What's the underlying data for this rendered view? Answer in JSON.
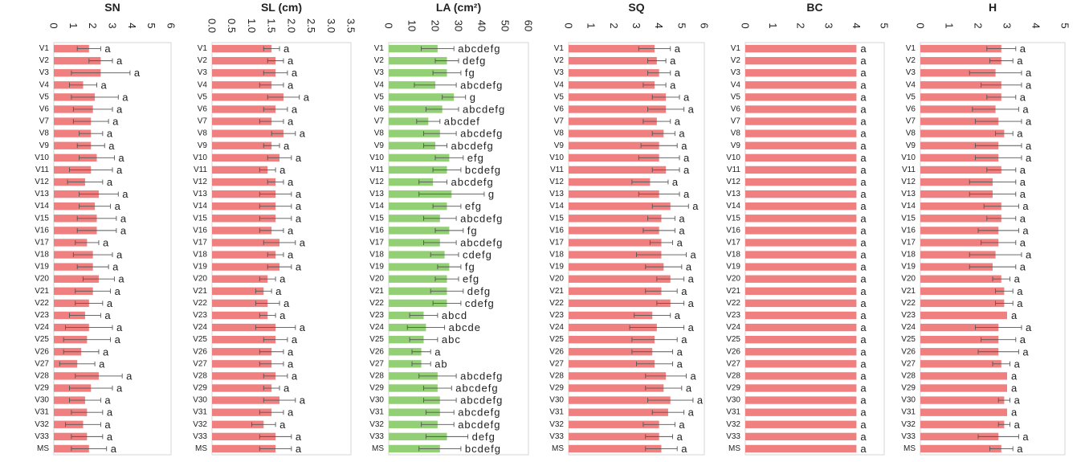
{
  "colors": {
    "red": "#f08080",
    "green": "#93cf74",
    "axis": "#d6d6d6",
    "err": "#555555"
  },
  "chart_data": [
    {
      "type": "bar",
      "title": "SN",
      "color": "red",
      "xlim": [
        0,
        6
      ],
      "ticks": [
        "0",
        "1",
        "2",
        "3",
        "4",
        "5",
        "6"
      ],
      "categories": [
        "V1",
        "V2",
        "V3",
        "V4",
        "V5",
        "V6",
        "V7",
        "V8",
        "V9",
        "V10",
        "V11",
        "V12",
        "V13",
        "V14",
        "V15",
        "V16",
        "V17",
        "V18",
        "V19",
        "V20",
        "V21",
        "V22",
        "V23",
        "V24",
        "V25",
        "V26",
        "V27",
        "V28",
        "V29",
        "V30",
        "V31",
        "V32",
        "V33",
        "MS"
      ],
      "values": [
        1.8,
        2.4,
        2.4,
        1.5,
        2.1,
        2.0,
        1.9,
        1.9,
        1.9,
        2.2,
        1.9,
        1.6,
        2.3,
        2.1,
        2.2,
        2.2,
        1.7,
        2.0,
        2.0,
        2.3,
        2.0,
        1.8,
        1.6,
        1.8,
        1.7,
        1.4,
        1.2,
        2.3,
        1.9,
        1.6,
        1.7,
        1.5,
        1.7,
        1.8
      ],
      "errors": [
        0.6,
        0.6,
        1.5,
        0.7,
        1.2,
        1.0,
        0.9,
        0.6,
        0.7,
        0.9,
        1.1,
        0.9,
        1.0,
        0.8,
        1.0,
        1.0,
        0.6,
        1.0,
        0.8,
        0.8,
        0.9,
        0.7,
        0.8,
        1.2,
        1.2,
        0.9,
        0.9,
        1.2,
        1.1,
        0.8,
        0.8,
        0.9,
        0.8,
        0.9
      ],
      "letters": [
        "a",
        "a",
        "a",
        "a",
        "a",
        "a",
        "a",
        "a",
        "a",
        "a",
        "a",
        "a",
        "a",
        "a",
        "a",
        "a",
        "a",
        "a",
        "a",
        "a",
        "a",
        "a",
        "a",
        "a",
        "a",
        "a",
        "a",
        "a",
        "a",
        "a",
        "a",
        "a",
        "a",
        "a"
      ]
    },
    {
      "type": "bar",
      "title": "SL (cm)",
      "color": "red",
      "xlim": [
        0,
        3.5
      ],
      "ticks": [
        "0.0",
        "0.5",
        "1.0",
        "1.5",
        "2.0",
        "2.5",
        "3.0",
        "3.5"
      ],
      "categories": [
        "V1",
        "V2",
        "V3",
        "V4",
        "V5",
        "V6",
        "V7",
        "V8",
        "V9",
        "V10",
        "V11",
        "V12",
        "V13",
        "V14",
        "V15",
        "V16",
        "V17",
        "V18",
        "V19",
        "V20",
        "V21",
        "V22",
        "V23",
        "V24",
        "V25",
        "V26",
        "V27",
        "V28",
        "V29",
        "V30",
        "V31",
        "V32",
        "V33",
        "MS"
      ],
      "values": [
        1.5,
        1.6,
        1.6,
        1.5,
        1.8,
        1.6,
        1.5,
        1.8,
        1.5,
        1.7,
        1.4,
        1.6,
        1.6,
        1.6,
        1.6,
        1.5,
        1.7,
        1.6,
        1.7,
        1.4,
        1.3,
        1.4,
        1.4,
        1.6,
        1.6,
        1.5,
        1.5,
        1.6,
        1.5,
        1.7,
        1.5,
        1.3,
        1.6,
        1.6
      ],
      "errors": [
        0.2,
        0.2,
        0.3,
        0.3,
        0.4,
        0.3,
        0.3,
        0.3,
        0.2,
        0.3,
        0.2,
        0.2,
        0.4,
        0.4,
        0.4,
        0.3,
        0.4,
        0.2,
        0.3,
        0.2,
        0.2,
        0.3,
        0.2,
        0.5,
        0.3,
        0.3,
        0.3,
        0.3,
        0.2,
        0.4,
        0.3,
        0.3,
        0.4,
        0.4
      ],
      "letters": [
        "a",
        "a",
        "a",
        "a",
        "a",
        "a",
        "a",
        "a",
        "a",
        "a",
        "a",
        "a",
        "a",
        "a",
        "a",
        "a",
        "a",
        "a",
        "a",
        "a",
        "a",
        "a",
        "a",
        "a",
        "a",
        "a",
        "a",
        "a",
        "a",
        "a",
        "a",
        "a",
        "a",
        "a"
      ]
    },
    {
      "type": "bar",
      "title": "LA (cm²)",
      "color": "green",
      "xlim": [
        0,
        60
      ],
      "ticks": [
        "0",
        "10",
        "20",
        "30",
        "40",
        "50",
        "60"
      ],
      "categories": [
        "V1",
        "V2",
        "V3",
        "V4",
        "V5",
        "V6",
        "V7",
        "V8",
        "V9",
        "V10",
        "V11",
        "V12",
        "V13",
        "V14",
        "V15",
        "V16",
        "V17",
        "V18",
        "V19",
        "V20",
        "V21",
        "V22",
        "V23",
        "V24",
        "V25",
        "V26",
        "V27",
        "V28",
        "V29",
        "V30",
        "V31",
        "V32",
        "V33",
        "MS"
      ],
      "values": [
        21,
        25,
        25,
        20,
        28,
        23,
        17,
        22,
        20,
        26,
        25,
        19,
        27,
        25,
        22,
        26,
        22,
        24,
        26,
        25,
        25,
        25,
        15,
        16,
        15,
        14,
        14,
        21,
        21,
        22,
        22,
        21,
        25,
        22
      ],
      "errors": [
        7,
        5,
        6,
        9,
        5,
        7,
        5,
        7,
        5,
        6,
        6,
        6,
        14,
        6,
        7,
        6,
        7,
        6,
        5,
        5,
        7,
        6,
        6,
        8,
        6,
        4,
        4,
        8,
        6,
        7,
        6,
        7,
        9,
        9
      ],
      "letters": [
        "abcdefg",
        "defg",
        "fg",
        "abcdefg",
        "g",
        "abcdefg",
        "abcdef",
        "abcdefg",
        "abcdefg",
        "efg",
        "bcdefg",
        "abcdefg",
        "g",
        "efg",
        "abcdefg",
        "fg",
        "abcdefg",
        "cdefg",
        "fg",
        "efg",
        "defg",
        "cdefg",
        "abcd",
        "abcde",
        "abc",
        "a",
        "ab",
        "abcdefg",
        "abcdefg",
        "abcdefg",
        "abcdefg",
        "abcdefg",
        "defg",
        "bcdefg"
      ]
    },
    {
      "type": "bar",
      "title": "SQ",
      "color": "red",
      "xlim": [
        0,
        6
      ],
      "ticks": [
        "0",
        "1",
        "2",
        "3",
        "4",
        "5",
        "6"
      ],
      "categories": [
        "V1",
        "V2",
        "V3",
        "V4",
        "V5",
        "V6",
        "V7",
        "V8",
        "V9",
        "V10",
        "V11",
        "V12",
        "V13",
        "V14",
        "V15",
        "V16",
        "V17",
        "V18",
        "V19",
        "V20",
        "V21",
        "V22",
        "V23",
        "V24",
        "V25",
        "V26",
        "V27",
        "V28",
        "V29",
        "V30",
        "V31",
        "V32",
        "V33",
        "MS"
      ],
      "values": [
        3.8,
        3.9,
        4.0,
        3.8,
        4.3,
        4.3,
        3.9,
        4.2,
        4.0,
        4.0,
        4.3,
        3.6,
        4.0,
        4.5,
        4.1,
        4.0,
        4.1,
        4.1,
        4.2,
        4.5,
        4.1,
        4.5,
        3.7,
        3.9,
        3.8,
        3.7,
        3.8,
        4.3,
        4.2,
        4.5,
        4.4,
        4.0,
        4.0,
        4.1
      ],
      "errors": [
        0.7,
        0.4,
        0.5,
        0.5,
        0.6,
        0.8,
        0.6,
        0.5,
        0.8,
        0.9,
        0.6,
        0.8,
        0.9,
        0.8,
        0.6,
        0.7,
        0.5,
        1.1,
        0.8,
        0.6,
        0.7,
        0.6,
        0.8,
        1.2,
        1.0,
        0.9,
        0.8,
        0.9,
        0.8,
        1.0,
        0.7,
        0.7,
        0.6,
        0.7
      ],
      "letters": [
        "a",
        "a",
        "a",
        "a",
        "a",
        "a",
        "a",
        "a",
        "a",
        "a",
        "a",
        "a",
        "a",
        "a",
        "a",
        "a",
        "a",
        "a",
        "a",
        "a",
        "a",
        "a",
        "a",
        "a",
        "a",
        "a",
        "a",
        "a",
        "a",
        "a",
        "a",
        "a",
        "a",
        "a"
      ]
    },
    {
      "type": "bar",
      "title": "BC",
      "color": "red",
      "xlim": [
        0,
        5
      ],
      "ticks": [
        "0",
        "1",
        "2",
        "3",
        "4",
        "5"
      ],
      "categories": [
        "V1",
        "V2",
        "V3",
        "V4",
        "V5",
        "V6",
        "V7",
        "V8",
        "V9",
        "V10",
        "V11",
        "V12",
        "V13",
        "V14",
        "V15",
        "V16",
        "V17",
        "V18",
        "V19",
        "V20",
        "V21",
        "V22",
        "V23",
        "V24",
        "V25",
        "V26",
        "V27",
        "V28",
        "V29",
        "V30",
        "V31",
        "V32",
        "V33",
        "MS"
      ],
      "values": [
        4,
        4,
        4,
        4,
        4,
        4,
        4,
        4,
        4,
        4,
        4,
        4,
        4,
        4,
        4,
        4,
        4,
        4,
        4,
        4,
        4,
        4,
        4,
        4,
        4,
        4,
        4,
        4,
        4,
        4,
        4,
        4,
        4,
        4
      ],
      "errors": [
        0,
        0,
        0,
        0,
        0,
        0,
        0,
        0,
        0,
        0,
        0,
        0,
        0,
        0,
        0,
        0,
        0,
        0,
        0,
        0,
        0,
        0,
        0,
        0,
        0,
        0,
        0,
        0,
        0,
        0,
        0,
        0,
        0,
        0
      ],
      "letters": [
        "a",
        "a",
        "a",
        "a",
        "a",
        "a",
        "a",
        "a",
        "a",
        "a",
        "a",
        "a",
        "a",
        "a",
        "a",
        "a",
        "a",
        "a",
        "a",
        "a",
        "a",
        "a",
        "a",
        "a",
        "a",
        "a",
        "a",
        "a",
        "a",
        "a",
        "a",
        "a",
        "a",
        "a"
      ]
    },
    {
      "type": "bar",
      "title": "H",
      "color": "red",
      "xlim": [
        0,
        5
      ],
      "ticks": [
        "0",
        "1",
        "2",
        "3",
        "4",
        "5"
      ],
      "categories": [
        "V1",
        "V2",
        "V3",
        "V4",
        "V5",
        "V6",
        "V7",
        "V8",
        "V9",
        "V10",
        "V11",
        "V12",
        "V13",
        "V14",
        "V15",
        "V16",
        "V17",
        "V18",
        "V19",
        "V20",
        "V21",
        "V22",
        "V23",
        "V24",
        "V25",
        "V26",
        "V27",
        "V28",
        "V29",
        "V30",
        "V31",
        "V32",
        "V33",
        "MS"
      ],
      "values": [
        2.8,
        2.8,
        2.6,
        2.8,
        2.8,
        2.6,
        2.7,
        2.9,
        2.7,
        2.7,
        2.8,
        2.5,
        2.5,
        2.8,
        2.8,
        2.7,
        2.7,
        2.6,
        2.5,
        2.8,
        2.9,
        2.9,
        3.0,
        2.7,
        2.7,
        2.7,
        2.8,
        3.0,
        3.0,
        2.9,
        3.0,
        2.9,
        2.7,
        2.8
      ],
      "errors": [
        0.5,
        0.4,
        0.9,
        0.7,
        0.5,
        0.8,
        0.8,
        0.3,
        0.8,
        0.8,
        0.5,
        0.8,
        0.8,
        0.6,
        0.5,
        0.7,
        0.6,
        0.9,
        0.8,
        0.3,
        0.3,
        0.3,
        0,
        0.8,
        0.6,
        0.7,
        0.3,
        0,
        0,
        0.2,
        0,
        0.2,
        0.7,
        0.4
      ],
      "letters": [
        "a",
        "a",
        "a",
        "a",
        "a",
        "a",
        "a",
        "a",
        "a",
        "a",
        "a",
        "a",
        "a",
        "a",
        "a",
        "a",
        "a",
        "a",
        "a",
        "a",
        "a",
        "a",
        "a",
        "a",
        "a",
        "a",
        "a",
        "a",
        "a",
        "a",
        "a",
        "a",
        "a",
        "a"
      ]
    }
  ]
}
